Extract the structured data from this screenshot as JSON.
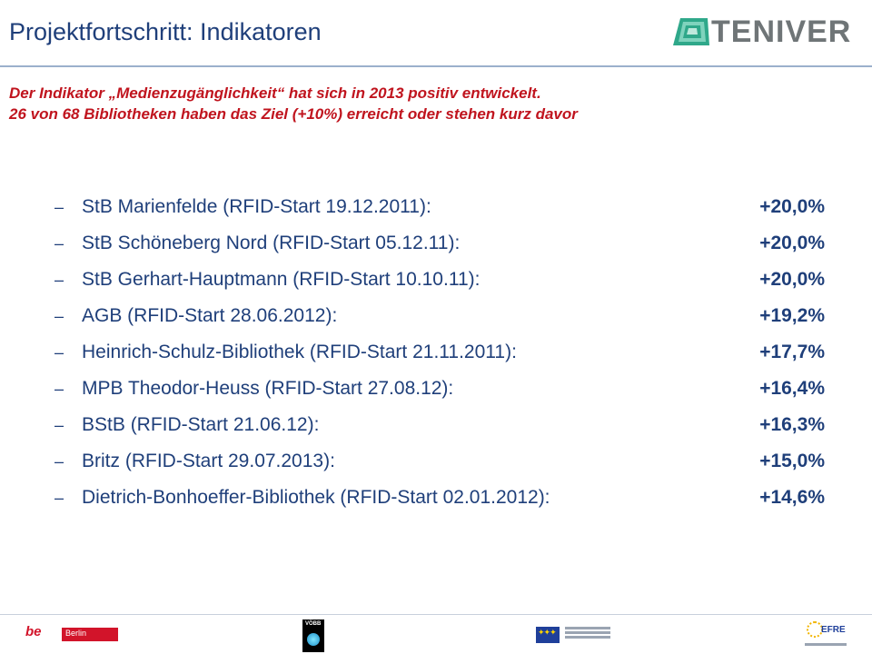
{
  "header": {
    "title": "Projektfortschritt: Indikatoren",
    "logo_text": "TENIVER"
  },
  "subtitle": {
    "line1": "Der Indikator „Medienzugänglichkeit“ hat sich in 2013 positiv entwickelt.",
    "line2": "26 von 68 Bibliotheken haben das Ziel (+10%) erreicht oder stehen kurz davor"
  },
  "list": {
    "bullet": "–",
    "items": [
      {
        "label": "StB Marienfelde (RFID-Start  19.12.2011):",
        "value": "+20,0%"
      },
      {
        "label": "StB Schöneberg Nord (RFID-Start 05.12.11):",
        "value": "+20,0%"
      },
      {
        "label": "StB Gerhart-Hauptmann (RFID-Start 10.10.11):",
        "value": "+20,0%"
      },
      {
        "label": "AGB (RFID-Start 28.06.2012):",
        "value": "+19,2%"
      },
      {
        "label": "Heinrich-Schulz-Bibliothek (RFID-Start  21.11.2011):",
        "value": "+17,7%"
      },
      {
        "label": "MPB Theodor-Heuss (RFID-Start 27.08.12):",
        "value": "+16,4%"
      },
      {
        "label": "BStB (RFID-Start 21.06.12):",
        "value": "+16,3%"
      },
      {
        "label": "Britz (RFID-Start  29.07.2013):",
        "value": "+15,0%"
      },
      {
        "label": "Dietrich-Bonhoeffer-Bibliothek (RFID-Start  02.01.2012):",
        "value": "+14,6%"
      }
    ]
  },
  "footer": {
    "berlin_be": "be",
    "berlin_name": "Berlin",
    "voebb": "VÖBB",
    "efre": "EFRE"
  },
  "colors": {
    "title": "#1f3f7a",
    "subtitle": "#c0141e",
    "list_text": "#1f3f7a",
    "logo_gray": "#6f7577",
    "logo_teal": "#2fa88a"
  },
  "icons": [
    "teniver-logo-icon",
    "berlin-logo-icon",
    "voebb-logo-icon",
    "eu-flag-icon",
    "efre-logo-icon"
  ]
}
